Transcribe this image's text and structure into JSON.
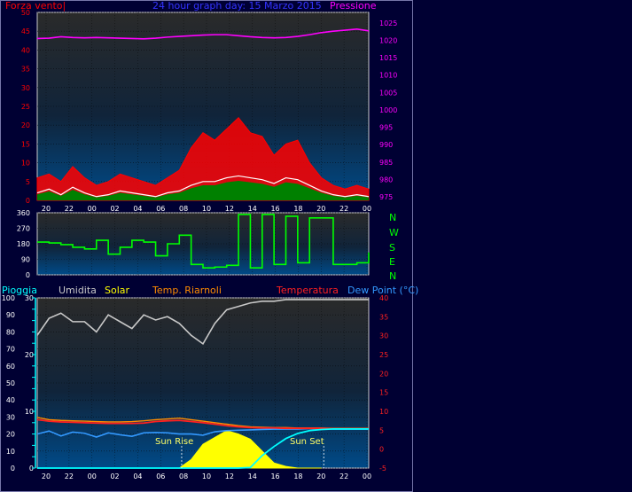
{
  "colors": {
    "bg": "#000033",
    "panel_border": "#c8c8c8",
    "wind": "#ff0000",
    "wind_gust_fill": "#ff0000",
    "wind_avg": "#ffffff",
    "wind_green": "#008000",
    "pressure": "#ff00ff",
    "direction": "#00ff00",
    "humidity": "#c8c8c8",
    "solar": "#ffff00",
    "temp_indoor": "#ff8c00",
    "temperature": "#ff2020",
    "dew_point": "#3399ff",
    "rain": "#00ffff",
    "axis_left_top": "#ff0000",
    "axis_right_top": "#ff00ff",
    "tick_text": "#ffffff",
    "title": "#3333ff",
    "ann_sun": "#ffff66"
  },
  "header": {
    "left": "Forza vento|",
    "title": "24 hour graph day:  15 Marzo 2015",
    "right": "Pressione"
  },
  "compass": [
    "N",
    "W",
    "S",
    "E",
    "N"
  ],
  "legend2": {
    "pioggia": "Pioggia",
    "umidita": "Umidita",
    "solar": "Solar",
    "riarnoli": "Temp. Riarnoli",
    "temperatura": "Temperatura",
    "dewpoint": "Dew Point (°C)"
  },
  "annotations": {
    "sunrise": "Sun Rise",
    "sunset": "Sun Set"
  },
  "chart_data": [
    {
      "type": "line",
      "title": "24 hour graph day:  15 Marzo 2015",
      "x_ticks": [
        "20",
        "22",
        "00",
        "02",
        "04",
        "06",
        "08",
        "10",
        "12",
        "14",
        "16",
        "18",
        "20",
        "22",
        "00"
      ],
      "y_left": {
        "label": "Forza vento|",
        "ticks": [
          0,
          5,
          10,
          15,
          20,
          25,
          30,
          35,
          40,
          45,
          50
        ],
        "range": [
          0,
          50
        ]
      },
      "y_right": {
        "label": "Pressione",
        "ticks": [
          975,
          980,
          985,
          990,
          995,
          1000,
          1005,
          1010,
          1015,
          1020,
          1025
        ],
        "range": [
          974,
          1028
        ]
      },
      "grid": true,
      "series": [
        {
          "name": "Pressione",
          "axis": "right",
          "x": [
            0,
            1,
            2,
            3,
            4,
            5,
            6,
            7,
            8,
            9,
            10,
            11,
            12,
            13,
            14,
            15,
            16,
            17,
            18,
            19,
            20,
            21,
            22,
            23,
            24,
            25,
            26,
            27,
            28
          ],
          "values": [
            1020.5,
            1020.6,
            1021.0,
            1020.8,
            1020.7,
            1020.8,
            1020.7,
            1020.6,
            1020.5,
            1020.4,
            1020.6,
            1020.9,
            1021.1,
            1021.3,
            1021.5,
            1021.6,
            1021.6,
            1021.3,
            1021.0,
            1020.8,
            1020.7,
            1020.8,
            1021.1,
            1021.6,
            1022.2,
            1022.6,
            1022.9,
            1023.2,
            1022.7
          ]
        },
        {
          "name": "gust",
          "axis": "left",
          "x": [
            0,
            1,
            2,
            3,
            4,
            5,
            6,
            7,
            8,
            9,
            10,
            11,
            12,
            13,
            14,
            15,
            16,
            17,
            18,
            19,
            20,
            21,
            22,
            23,
            24,
            25,
            26,
            27,
            28
          ],
          "values": [
            6,
            7,
            5,
            9,
            6,
            4,
            5,
            7,
            6,
            5,
            4,
            6,
            8,
            14,
            18,
            16,
            19,
            22,
            18,
            17,
            12,
            15,
            16,
            10,
            6,
            4,
            3,
            4,
            3
          ]
        },
        {
          "name": "average",
          "axis": "left",
          "x": [
            0,
            1,
            2,
            3,
            4,
            5,
            6,
            7,
            8,
            9,
            10,
            11,
            12,
            13,
            14,
            15,
            16,
            17,
            18,
            19,
            20,
            21,
            22,
            23,
            24,
            25,
            26,
            27,
            28
          ],
          "values": [
            2,
            3,
            1.5,
            3.5,
            2,
            1,
            1.5,
            2.5,
            2,
            1.5,
            1,
            2,
            2.5,
            4,
            5,
            5,
            6,
            6.5,
            6,
            5.5,
            4.5,
            6,
            5.5,
            4,
            2.5,
            1.5,
            1,
            1.5,
            1
          ]
        }
      ]
    },
    {
      "type": "line",
      "y_left": {
        "ticks": [
          0,
          90,
          180,
          270,
          360
        ],
        "range": [
          0,
          360
        ]
      },
      "grid": true,
      "series": [
        {
          "name": "direction",
          "x": [
            0,
            1,
            2,
            3,
            4,
            5,
            6,
            7,
            8,
            9,
            10,
            11,
            12,
            13,
            14,
            15,
            16,
            17,
            18,
            19,
            20,
            21,
            22,
            23,
            24,
            25,
            26,
            27,
            28
          ],
          "values": [
            190,
            185,
            175,
            160,
            150,
            200,
            120,
            160,
            200,
            190,
            110,
            180,
            230,
            60,
            40,
            45,
            55,
            350,
            40,
            350,
            60,
            340,
            70,
            330,
            330,
            60,
            60,
            70,
            130
          ]
        }
      ]
    },
    {
      "type": "area",
      "y_left_outer": {
        "label": "Pioggia",
        "ticks": [
          0,
          10,
          20,
          30,
          40,
          50,
          60,
          70,
          80,
          90,
          100
        ],
        "range": [
          0,
          100
        ]
      },
      "y_left_inner": {
        "ticks": [
          0,
          2,
          4,
          6,
          8,
          10,
          12,
          14,
          16,
          18,
          20,
          22,
          24,
          26,
          28,
          30
        ],
        "range": [
          0,
          30
        ]
      },
      "y_right": {
        "label": "Dew Point (°C)",
        "ticks": [
          -5,
          0,
          5,
          10,
          15,
          20,
          25,
          30,
          35,
          40
        ],
        "range": [
          -5,
          40
        ]
      },
      "grid": true,
      "series": [
        {
          "name": "Umidita",
          "axis": "outer",
          "x": [
            0,
            1,
            2,
            3,
            4,
            5,
            6,
            7,
            8,
            9,
            10,
            11,
            12,
            13,
            14,
            15,
            16,
            17,
            18,
            19,
            20,
            21,
            22,
            23,
            24,
            25,
            26,
            27,
            28
          ],
          "values": [
            78,
            88,
            91,
            86,
            86,
            80,
            90,
            86,
            82,
            90,
            87,
            89,
            85,
            78,
            73,
            85,
            93,
            95,
            97,
            98,
            98,
            99,
            99,
            99,
            99,
            99,
            99,
            99,
            99
          ]
        },
        {
          "name": "Temperatura",
          "axis": "right",
          "x": [
            0,
            1,
            2,
            3,
            4,
            5,
            6,
            7,
            8,
            9,
            10,
            11,
            12,
            13,
            14,
            15,
            16,
            17,
            18,
            19,
            20,
            21,
            22,
            23,
            24,
            25,
            26,
            27,
            28
          ],
          "values": [
            7.8,
            7.4,
            7.2,
            7.1,
            7.0,
            6.9,
            6.8,
            6.8,
            6.8,
            6.9,
            7.3,
            7.5,
            7.6,
            7.3,
            7.0,
            6.6,
            6.2,
            5.9,
            5.7,
            5.6,
            5.6,
            5.5,
            5.5,
            5.5,
            5.5,
            5.4,
            5.4,
            5.4,
            5.4
          ]
        },
        {
          "name": "Temp. Riarnoli",
          "axis": "right",
          "x": [
            0,
            1,
            2,
            3,
            4,
            5,
            6,
            7,
            8,
            9,
            10,
            11,
            12,
            13,
            14,
            15,
            16,
            17,
            18,
            19,
            20,
            21,
            22,
            23,
            24,
            25,
            26,
            27,
            28
          ],
          "values": [
            8.4,
            7.8,
            7.6,
            7.5,
            7.4,
            7.3,
            7.2,
            7.2,
            7.3,
            7.5,
            7.8,
            8.0,
            8.2,
            7.8,
            7.4,
            7.0,
            6.6,
            6.2,
            5.9,
            5.8,
            5.7,
            5.7,
            5.6,
            5.6,
            5.6,
            5.5,
            5.5,
            5.5,
            5.5
          ]
        },
        {
          "name": "Dew Point (°C)",
          "axis": "right",
          "x": [
            0,
            1,
            2,
            3,
            4,
            5,
            6,
            7,
            8,
            9,
            10,
            11,
            12,
            13,
            14,
            15,
            16,
            17,
            18,
            19,
            20,
            21,
            22,
            23,
            24,
            25,
            26,
            27,
            28
          ],
          "values": [
            4.0,
            4.8,
            3.5,
            4.5,
            4.2,
            3.2,
            4.3,
            3.8,
            3.4,
            4.3,
            4.4,
            4.3,
            4.0,
            4.0,
            3.7,
            4.6,
            4.9,
            5.0,
            5.1,
            5.2,
            5.3,
            5.3,
            5.3,
            5.4,
            5.4,
            5.3,
            5.3,
            5.3,
            5.3
          ]
        },
        {
          "name": "Solar",
          "axis": "outer",
          "x": [
            12,
            13,
            14,
            15,
            16,
            17,
            18,
            19,
            20,
            21,
            22,
            23,
            24
          ],
          "values": [
            0,
            5,
            14,
            18,
            22,
            20,
            17,
            10,
            3,
            1,
            0,
            0,
            0
          ]
        },
        {
          "name": "Pioggia",
          "axis": "inner",
          "x": [
            0,
            1,
            2,
            3,
            4,
            5,
            6,
            7,
            8,
            9,
            10,
            11,
            12,
            13,
            14,
            15,
            16,
            17,
            18,
            19,
            20,
            21,
            22,
            23,
            24,
            25,
            26,
            27,
            28
          ],
          "values": [
            0,
            0,
            0,
            0,
            0,
            0,
            0,
            0,
            0,
            0,
            0,
            0,
            0,
            0,
            0,
            0,
            0,
            0,
            0.1,
            2.2,
            3.8,
            5.2,
            6.1,
            6.6,
            6.8,
            6.9,
            6.9,
            6.9,
            6.9
          ]
        }
      ]
    }
  ]
}
